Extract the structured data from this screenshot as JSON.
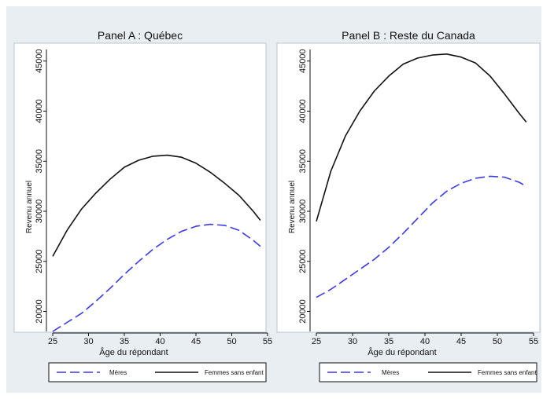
{
  "colors": {
    "page_background": "#e9eef3",
    "plot_background": "#ffffff",
    "childless_line": "#111111",
    "mothers_line": "#3a3ae6"
  },
  "chart_data": [
    {
      "type": "line",
      "title": "Panel A : Québec",
      "xlabel": "Âge du répondant",
      "ylabel": "Revenu annuel",
      "xlim": [
        25,
        55
      ],
      "ylim": [
        18000,
        46000
      ],
      "xticks": [
        "25",
        "30",
        "35",
        "40",
        "45",
        "50",
        "55"
      ],
      "yticks": [
        "20000",
        "25000",
        "30000",
        "35000",
        "40000",
        "45000"
      ],
      "grid": false,
      "legend_position": "bottom",
      "series": [
        {
          "name": "Mères",
          "style": "dashed",
          "x": [
            25,
            27,
            29,
            31,
            33,
            35,
            37,
            39,
            41,
            43,
            45,
            47,
            49,
            51,
            53,
            54
          ],
          "y": [
            18000,
            18900,
            19800,
            21000,
            22300,
            23700,
            25000,
            26200,
            27200,
            28000,
            28500,
            28700,
            28600,
            28100,
            27100,
            26500
          ]
        },
        {
          "name": "Femmes sans enfant",
          "style": "solid",
          "x": [
            25,
            27,
            29,
            31,
            33,
            35,
            37,
            39,
            41,
            43,
            45,
            47,
            49,
            51,
            53,
            54
          ],
          "y": [
            25500,
            28100,
            30200,
            31800,
            33200,
            34400,
            35100,
            35500,
            35600,
            35400,
            34800,
            33900,
            32800,
            31600,
            30000,
            29100
          ]
        }
      ]
    },
    {
      "type": "line",
      "title": "Panel B : Reste du Canada",
      "xlabel": "Âge du répondant",
      "ylabel": "Revenu annuel",
      "xlim": [
        25,
        55
      ],
      "ylim": [
        18000,
        46000
      ],
      "xticks": [
        "25",
        "30",
        "35",
        "40",
        "45",
        "50",
        "55"
      ],
      "yticks": [
        "20000",
        "25000",
        "30000",
        "35000",
        "40000",
        "45000"
      ],
      "grid": false,
      "legend_position": "bottom",
      "series": [
        {
          "name": "Mères",
          "style": "dashed",
          "x": [
            25,
            27,
            29,
            31,
            33,
            35,
            37,
            39,
            41,
            43,
            45,
            47,
            49,
            51,
            53,
            54
          ],
          "y": [
            21400,
            22200,
            23200,
            24200,
            25200,
            26400,
            27800,
            29300,
            30800,
            32000,
            32800,
            33300,
            33500,
            33400,
            32900,
            32500
          ]
        },
        {
          "name": "Femmes sans enfant",
          "style": "solid",
          "x": [
            25,
            27,
            29,
            31,
            33,
            35,
            37,
            39,
            41,
            43,
            45,
            47,
            49,
            51,
            53,
            54
          ],
          "y": [
            29000,
            34000,
            37500,
            40000,
            42000,
            43500,
            44700,
            45300,
            45600,
            45700,
            45400,
            44800,
            43500,
            41700,
            39800,
            38900
          ]
        }
      ]
    }
  ]
}
